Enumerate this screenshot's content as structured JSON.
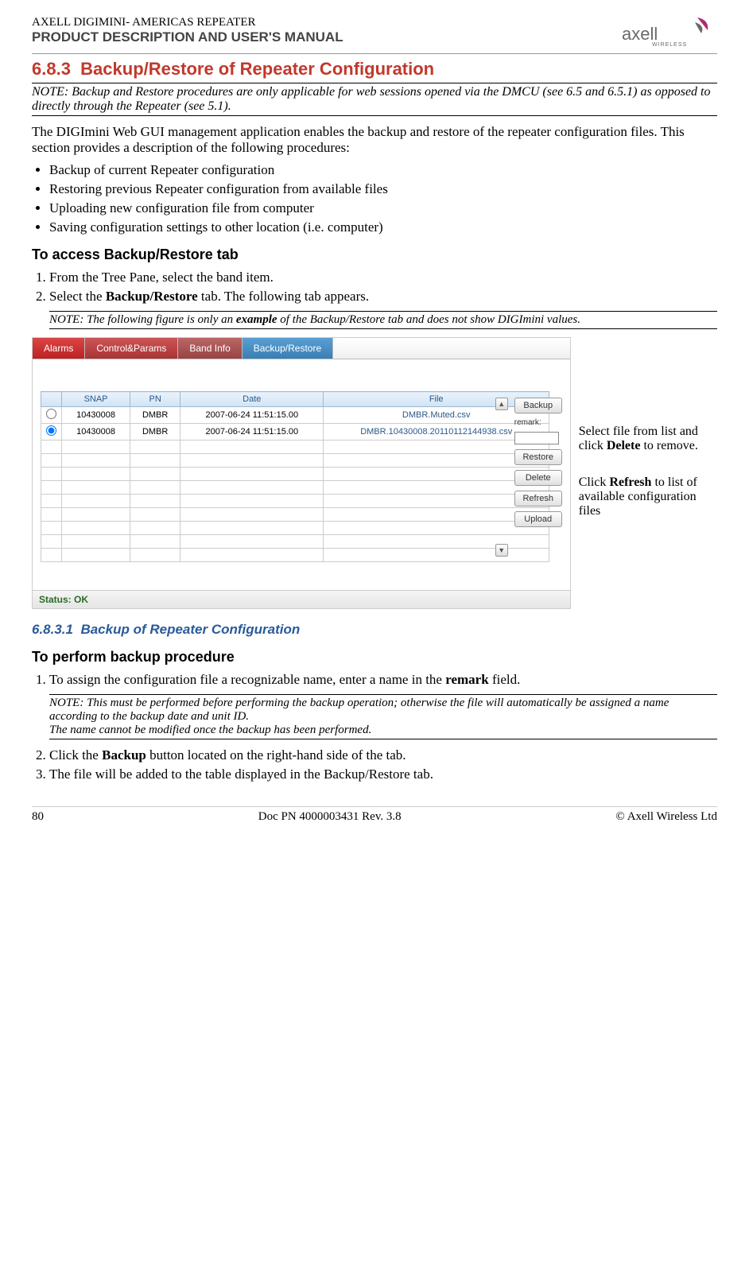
{
  "header": {
    "product_line": "AXELL DIGIMINI- AMERICAS REPEATER",
    "subtitle": "PRODUCT DESCRIPTION AND USER'S MANUAL",
    "logo_text": "axell",
    "logo_sub": "WIRELESS"
  },
  "section": {
    "num": "6.8.3",
    "title": "Backup/Restore of Repeater Configuration"
  },
  "note1": "NOTE: Backup and Restore procedures are only applicable for web sessions opened via the DMCU (see 6.5 and 6.5.1) as opposed to directly through the Repeater (see 5.1).",
  "intro": "The DIGImini Web GUI management application enables the backup and restore of the repeater configuration files. This section provides a description of the following procedures:",
  "bullets": [
    "Backup of current Repeater configuration",
    "Restoring previous Repeater configuration from available files",
    "Uploading new configuration file from computer",
    "Saving configuration settings to other location (i.e. computer)"
  ],
  "access_heading": "To access Backup/Restore tab",
  "access_steps": {
    "s1": "From the Tree Pane, select the band item.",
    "s2_pre": "Select the ",
    "s2_bold": "Backup/Restore",
    "s2_post": " tab. The following tab appears."
  },
  "note2_pre": "NOTE: The following figure is only an ",
  "note2_bold": "example",
  "note2_post": " of the Backup/Restore tab and does not show DIGImini values.",
  "screenshot": {
    "tabs": [
      "Alarms",
      "Control&Params",
      "Band Info",
      "Backup/Restore"
    ],
    "columns": [
      "SNAP",
      "PN",
      "Date",
      "File"
    ],
    "rows": [
      {
        "snap": "10430008",
        "pn": "DMBR",
        "date": "2007-06-24 11:51:15.00",
        "file": "DMBR.Muted.csv",
        "selected": false
      },
      {
        "snap": "10430008",
        "pn": "DMBR",
        "date": "2007-06-24 11:51:15.00",
        "file": "DMBR.10430008.20110112144938.csv",
        "selected": true
      }
    ],
    "empty_rows": 9,
    "buttons": {
      "backup": "Backup",
      "remark": "remark:",
      "restore": "Restore",
      "delete": "Delete",
      "refresh": "Refresh",
      "upload": "Upload"
    },
    "status": "Status: OK"
  },
  "callouts": {
    "c1_pre": "Select file from list and click ",
    "c1_bold": "Delete",
    "c1_post": " to remove.",
    "c2_pre": "Click ",
    "c2_bold": "Refresh",
    "c2_post": " to list of available configuration files"
  },
  "subsection": {
    "num": "6.8.3.1",
    "title": "Backup of Repeater Configuration"
  },
  "perform_heading": "To perform backup procedure",
  "perform_steps": {
    "s1_pre": "To assign the configuration file a recognizable name, enter a name in the ",
    "s1_bold": "remark",
    "s1_post": " field.",
    "note3": "NOTE: This must be performed before performing the backup operation; otherwise the file will automatically be assigned a name according to the backup date and unit ID.\nThe name cannot be modified once the backup has been performed.",
    "s2_pre": "Click the ",
    "s2_bold": "Backup",
    "s2_post": " button located on the right-hand side of the tab.",
    "s3": "The file will be added to the table displayed in the Backup/Restore tab."
  },
  "footer": {
    "page": "80",
    "doc": "Doc PN 4000003431 Rev. 3.8",
    "copyright": "© Axell Wireless Ltd"
  }
}
